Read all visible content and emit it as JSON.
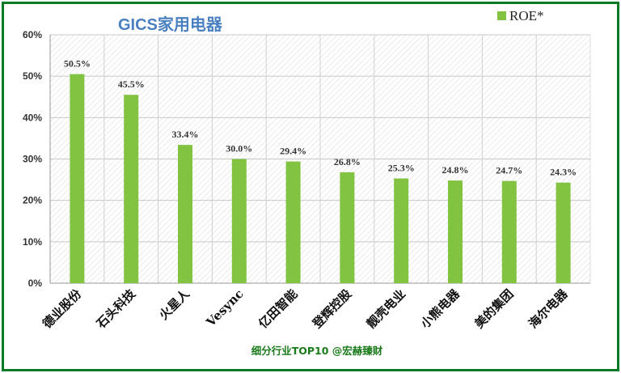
{
  "chart_data": {
    "type": "bar",
    "title": "GICS家用电器",
    "categories": [
      "德业股份",
      "石头科技",
      "火星人",
      "Vesync",
      "亿田智能",
      "登辉控股",
      "靓壳电业",
      "小熊电器",
      "美的集团",
      "海尔电器"
    ],
    "series": [
      {
        "name": "ROE*",
        "values": [
          50.5,
          45.5,
          33.4,
          30.0,
          29.4,
          26.8,
          25.3,
          24.8,
          24.7,
          24.3
        ],
        "data_labels": [
          "50.5%",
          "45.5%",
          "33.4%",
          "30.0%",
          "29.4%",
          "26.8%",
          "25.3%",
          "24.8%",
          "24.7%",
          "24.3%"
        ]
      }
    ],
    "ylim": [
      0,
      60
    ],
    "yticks": [
      "0%",
      "10%",
      "20%",
      "30%",
      "40%",
      "50%",
      "60%"
    ],
    "grid": true,
    "legend_position": "top-right",
    "bar_color": "#82c341",
    "footer": "细分行业TOP10 @宏赫臻财"
  },
  "colors": {
    "title": "#4a7fc0",
    "border": "#0b7a24",
    "footer": "#1a7a1a"
  }
}
